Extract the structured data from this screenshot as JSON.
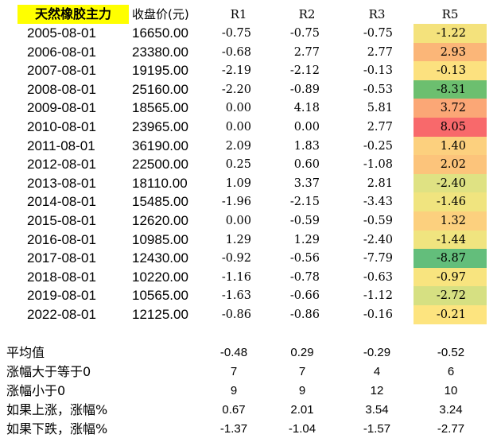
{
  "header": {
    "title": "天然橡胶主力",
    "close": "收盘价(元)",
    "r1": "R1",
    "r2": "R2",
    "r3": "R3",
    "r5": "R5"
  },
  "rows": [
    {
      "date": "2005-08-01",
      "close": "16650.00",
      "r1": "-0.75",
      "r2": "-0.75",
      "r3": "-0.75",
      "r5": "-1.22",
      "r5_color": "#f4e27c"
    },
    {
      "date": "2006-08-01",
      "close": "23380.00",
      "r1": "-0.68",
      "r2": "2.77",
      "r3": "2.77",
      "r5": "2.93",
      "r5_color": "#fbb678"
    },
    {
      "date": "2007-08-01",
      "close": "19195.00",
      "r1": "-2.19",
      "r2": "-2.12",
      "r3": "-0.13",
      "r5": "-0.13",
      "r5_color": "#fce17f"
    },
    {
      "date": "2008-08-01",
      "close": "25160.00",
      "r1": "-2.20",
      "r2": "-0.89",
      "r3": "-0.53",
      "r5": "-8.31",
      "r5_color": "#6cbf6f"
    },
    {
      "date": "2009-08-01",
      "close": "18565.00",
      "r1": "0.00",
      "r2": "4.18",
      "r3": "5.81",
      "r5": "3.72",
      "r5_color": "#fba776"
    },
    {
      "date": "2010-08-01",
      "close": "23965.00",
      "r1": "0.00",
      "r2": "0.00",
      "r3": "2.77",
      "r5": "8.05",
      "r5_color": "#f8696b"
    },
    {
      "date": "2011-08-01",
      "close": "36190.00",
      "r1": "2.09",
      "r2": "1.83",
      "r3": "-0.25",
      "r5": "1.40",
      "r5_color": "#fcd07e"
    },
    {
      "date": "2012-08-01",
      "close": "22500.00",
      "r1": "0.25",
      "r2": "0.60",
      "r3": "-1.08",
      "r5": "2.02",
      "r5_color": "#fcc47b"
    },
    {
      "date": "2013-08-01",
      "close": "18110.00",
      "r1": "1.09",
      "r2": "3.37",
      "r3": "2.81",
      "r5": "-2.40",
      "r5_color": "#dfe283"
    },
    {
      "date": "2014-08-01",
      "close": "15485.00",
      "r1": "-1.96",
      "r2": "-2.15",
      "r3": "-3.43",
      "r5": "-1.46",
      "r5_color": "#f0e47f"
    },
    {
      "date": "2015-08-01",
      "close": "12620.00",
      "r1": "0.00",
      "r2": "-0.59",
      "r3": "-0.59",
      "r5": "1.32",
      "r5_color": "#fcd07e"
    },
    {
      "date": "2016-08-01",
      "close": "10985.00",
      "r1": "1.29",
      "r2": "1.29",
      "r3": "-2.40",
      "r5": "-1.44",
      "r5_color": "#f0e47f"
    },
    {
      "date": "2017-08-01",
      "close": "12430.00",
      "r1": "-0.92",
      "r2": "-0.56",
      "r3": "-7.79",
      "r5": "-8.87",
      "r5_color": "#63be7b"
    },
    {
      "date": "2018-08-01",
      "close": "10220.00",
      "r1": "-1.16",
      "r2": "-0.78",
      "r3": "-0.63",
      "r5": "-0.97",
      "r5_color": "#f8e47f"
    },
    {
      "date": "2019-08-01",
      "close": "10565.00",
      "r1": "-1.63",
      "r2": "-0.66",
      "r3": "-1.12",
      "r5": "-2.72",
      "r5_color": "#d6e082"
    },
    {
      "date": "2022-08-01",
      "close": "12125.00",
      "r1": "-0.86",
      "r2": "-0.86",
      "r3": "-0.16",
      "r5": "-0.21",
      "r5_color": "#fde47f"
    }
  ],
  "stats": [
    {
      "label": "平均值",
      "r1": "-0.48",
      "r2": "0.29",
      "r3": "-0.29",
      "r5": "-0.52"
    },
    {
      "label": "涨幅大于等于0",
      "r1": "7",
      "r2": "7",
      "r3": "4",
      "r5": "6"
    },
    {
      "label": "涨幅小于0",
      "r1": "9",
      "r2": "9",
      "r3": "12",
      "r5": "10"
    },
    {
      "label": "如果上涨，涨幅%",
      "r1": "0.67",
      "r2": "2.01",
      "r3": "3.54",
      "r5": "3.24"
    },
    {
      "label": "如果下跌，涨幅%",
      "r1": "-1.37",
      "r2": "-1.04",
      "r3": "-1.57",
      "r5": "-2.77"
    }
  ]
}
